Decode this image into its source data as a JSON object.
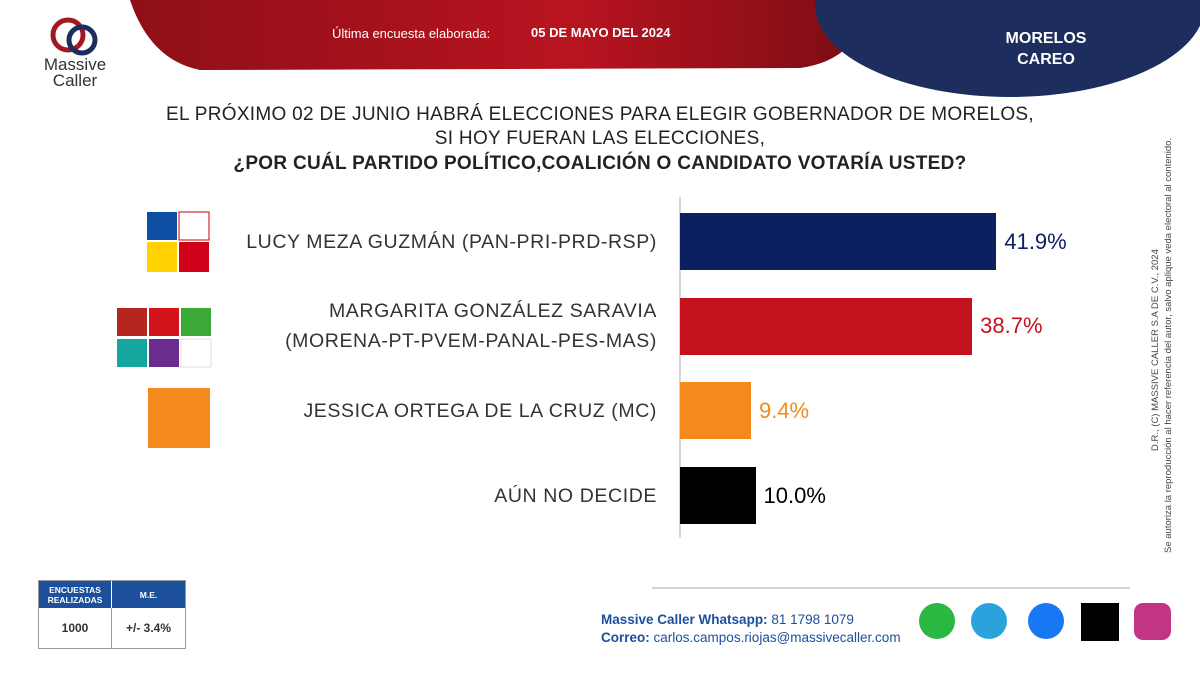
{
  "header": {
    "logo_top": "Massive",
    "logo_bottom": "Caller",
    "survey_label": "Última encuesta elaborada:",
    "survey_date": "05 DE MAYO DEL 2024",
    "region": "MORELOS",
    "subtitle": "CAREO"
  },
  "question": [
    "EL PRÓXIMO 02 DE JUNIO HABRÁ ELECCIONES PARA ELEGIR GOBERNADOR DE MORELOS,",
    "SI HOY FUERAN LAS ELECCIONES,",
    "¿POR CUÁL PARTIDO POLÍTICO,COALICIÓN  O CANDIDATO  VOTARÍA USTED?"
  ],
  "chart_data": {
    "type": "bar",
    "orientation": "horizontal",
    "categories": [
      "LUCY MEZA GUZMÁN (PAN-PRI-PRD-RSP)",
      "MARGARITA GONZÁLEZ SARAVIA (MORENA-PT-PVEM-PANAL-PES-MAS)",
      "JESSICA ORTEGA DE LA CRUZ (MC)",
      "AÚN NO DECIDE"
    ],
    "values": [
      41.9,
      38.7,
      9.4,
      10.0
    ],
    "value_labels": [
      "41.9%",
      "38.7%",
      "9.4%",
      "10.0%"
    ],
    "colors": [
      "#0c1f5e",
      "#c3121d",
      "#f4891f",
      "#000000"
    ]
  },
  "footer": {
    "table_header": [
      "ENCUESTAS REALIZADAS",
      "M.E."
    ],
    "table_row": [
      "1000",
      "+/- 3.4%"
    ],
    "whatsapp_label": "Massive Caller Whatsapp:",
    "whatsapp": "81 1798 1079",
    "email_label": "Correo:",
    "email": "carlos.campos.riojas@massivecaller.com"
  },
  "legal": [
    "D.R., (C) MASSIVE CALLER S.A DE C.V., 2024",
    "Se autoriza la reproducción al hacer referencia del autor, salvo aplique veda electoral al contenido."
  ]
}
